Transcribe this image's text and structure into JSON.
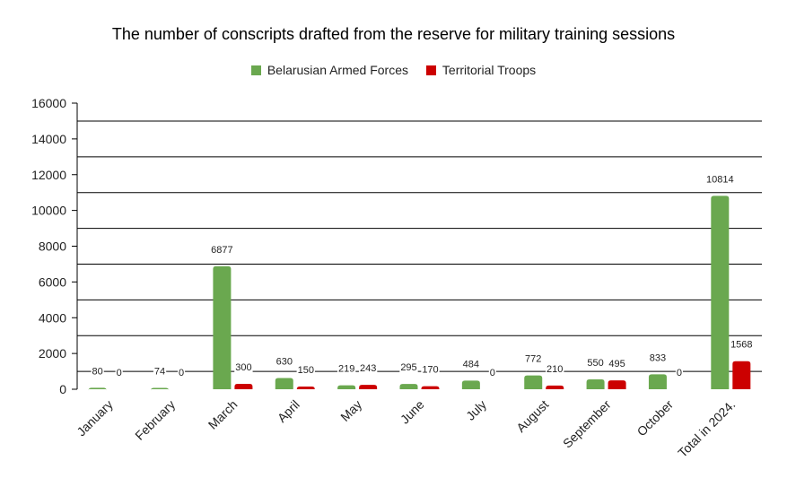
{
  "chart_data": {
    "type": "bar",
    "title": "The number of conscripts drafted from the reserve for military training sessions",
    "categories": [
      "January",
      "February",
      "March",
      "April",
      "May",
      "June",
      "July",
      "August",
      "September",
      "October",
      "Total in 2024."
    ],
    "series": [
      {
        "name": "Belarusian Armed Forces",
        "color": "#6aa84f",
        "values": [
          80,
          74,
          6877,
          630,
          219,
          295,
          484,
          772,
          550,
          833,
          10814
        ]
      },
      {
        "name": "Territorial Troops",
        "color": "#cc0000",
        "values": [
          0,
          0,
          300,
          150,
          243,
          170,
          0,
          210,
          495,
          0,
          1568
        ]
      }
    ],
    "ylim": [
      0,
      16000
    ],
    "yticks": [
      0,
      2000,
      4000,
      6000,
      8000,
      10000,
      12000,
      14000,
      16000
    ],
    "gridlines": [
      1000,
      3000,
      5000,
      7000,
      9000,
      11000,
      13000,
      15000
    ],
    "legend": "top",
    "xlabel": "",
    "ylabel": ""
  }
}
